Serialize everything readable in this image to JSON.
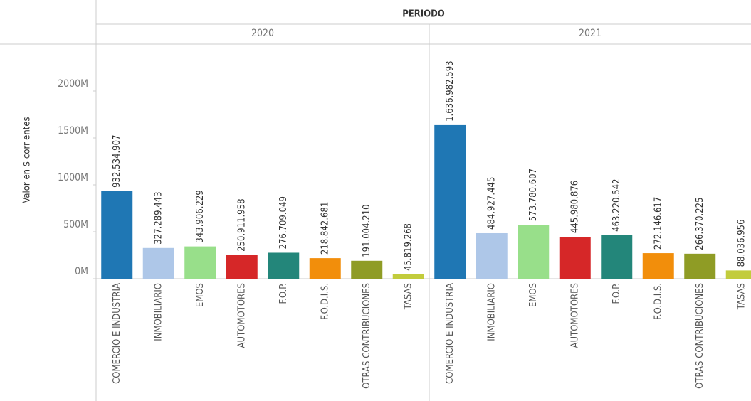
{
  "chart_data": {
    "type": "bar",
    "column_header": "PERIODO",
    "y_label": "Valor en $ corrientes",
    "categories": [
      "COMERCIO E INDUSTRIA",
      "INMOBILIARIO",
      "EMOS",
      "AUTOMOTORES",
      "F.O.P.",
      "F.O.D.I.S.",
      "OTRAS CONTRIBUCIONES",
      "TASAS"
    ],
    "colors": [
      "#1f77b4",
      "#aec7e8",
      "#98df8a",
      "#d62728",
      "#23867a",
      "#f28e0b",
      "#8f9c25",
      "#c2cc3c"
    ],
    "series": [
      {
        "name": "2020",
        "values": [
          932534907,
          327289443,
          343906229,
          250911958,
          276709049,
          218842681,
          191004210,
          45819268
        ],
        "value_labels": [
          "932.534.907",
          "327.289.443",
          "343.906.229",
          "250.911.958",
          "276.709.049",
          "218.842.681",
          "191.004.210",
          "45.819.268"
        ]
      },
      {
        "name": "2021",
        "values": [
          1636982593,
          484927445,
          573780607,
          445980876,
          463220542,
          272146617,
          266370225,
          88036956
        ],
        "value_labels": [
          "1.636.982.593",
          "484.927.445",
          "573.780.607",
          "445.980.876",
          "463.220.542",
          "272.146.617",
          "266.370.225",
          "88.036.956"
        ]
      }
    ],
    "ylim": [
      0,
      2500000000
    ],
    "yticks": [
      {
        "value": 0,
        "label": "0M"
      },
      {
        "value": 500000000,
        "label": "500M"
      },
      {
        "value": 1000000000,
        "label": "1000M"
      },
      {
        "value": 1500000000,
        "label": "1500M"
      },
      {
        "value": 2000000000,
        "label": "2000M"
      }
    ],
    "grid": false
  }
}
